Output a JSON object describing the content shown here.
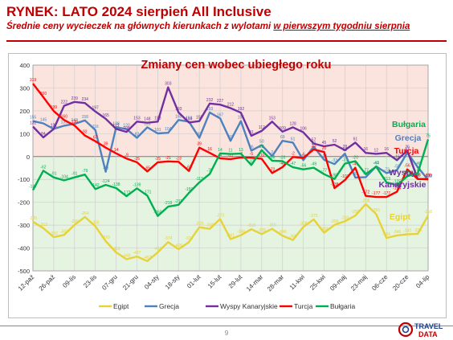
{
  "header": {
    "title": "RYNEK: LATO 2024 sierpień All Inclusive",
    "subtitle_part1": "Średnie ceny wycieczek na głównych kierunkach z wylotami ",
    "subtitle_part2": "w pierwszym tygodniu sierpnia"
  },
  "footer": {
    "page_number": "9",
    "logo_text_1": "TRAVEL",
    "logo_text_2": "DATA"
  },
  "chart_data": {
    "type": "line",
    "title": "Zmiany cen wobec ubiegłego roku",
    "ylim": [
      -500,
      400
    ],
    "yticks": [
      -500,
      -400,
      -300,
      -200,
      -100,
      0,
      100,
      200,
      300,
      400
    ],
    "x_tick_labels": [
      "12-paź",
      "26-paź",
      "09-lis",
      "23-lis",
      "07-gru",
      "21-gru",
      "04-sty",
      "18-sty",
      "01-lut",
      "15-lut",
      "29-lut",
      "14-mar",
      "28-mar",
      "11-kwi",
      "25-kwi",
      "09-maj",
      "23-maj",
      "06-cze",
      "20-cze",
      "04-lip"
    ],
    "x_count": 39,
    "grid": true,
    "legend_position": "bottom",
    "background_bands": {
      "positive": "#fbe3de",
      "negative": "#e5f3e1"
    },
    "series": [
      {
        "name": "Egipt",
        "color": "#e5d338",
        "values": [
          -285,
          -313,
          -352,
          -343,
          -299,
          -264,
          -305,
          -370,
          -419,
          -449,
          -437,
          -457,
          -419,
          -374,
          -405,
          -374,
          -309,
          -316,
          -273,
          -361,
          -344,
          -318,
          -339,
          -316,
          -346,
          -365,
          -308,
          -275,
          -333,
          -299,
          -283,
          -258,
          -208,
          -251,
          -356,
          -345,
          -340,
          -338,
          -258
        ]
      },
      {
        "name": "Grecja",
        "color": "#4f81bd",
        "values": [
          155,
          145,
          121,
          135,
          143,
          158,
          116,
          -66,
          128,
          120,
          82,
          128,
          101,
          104,
          160,
          153,
          82,
          193,
          167,
          69,
          155,
          26,
          50,
          2,
          69,
          61,
          -16,
          43,
          -14,
          -33,
          13,
          -92,
          -90,
          -43,
          -72,
          -59,
          17,
          -46,
          -102
        ]
      },
      {
        "name": "Wyspy Kanaryjskie",
        "color": "#7030a0",
        "values": [
          131,
          84,
          121,
          222,
          239,
          234,
          197,
          165,
          121,
          108,
          153,
          148,
          153,
          303,
          193,
          149,
          155,
          232,
          227,
          212,
          192,
          91,
          112,
          153,
          109,
          128,
          106,
          57,
          45,
          52,
          28,
          61,
          16,
          12,
          16,
          -16,
          26,
          -98,
          -98
        ]
      },
      {
        "name": "Turcja",
        "color": "#ff0000",
        "values": [
          319,
          260,
          199,
          160,
          136,
          92,
          67,
          39,
          14,
          -9,
          -25,
          -65,
          -25,
          -21,
          -23,
          -63,
          39,
          16,
          -8,
          -11,
          -4,
          -5,
          -10,
          -72,
          -46,
          -2,
          -6,
          31,
          20,
          -138,
          -103,
          -49,
          -172,
          -177,
          -177,
          -154,
          -56,
          -98,
          -100
        ]
      },
      {
        "name": "Bułgaria",
        "color": "#00b050",
        "values": [
          -147,
          -62,
          -91,
          -104,
          -91,
          -79,
          -142,
          -124,
          -138,
          -173,
          -139,
          -171,
          -260,
          -219,
          -211,
          -159,
          -113,
          -76,
          14,
          11,
          13,
          -37,
          28,
          -18,
          -20,
          -47,
          -56,
          -49,
          -77,
          -98,
          -31,
          -20,
          -77,
          -44,
          -113,
          -125,
          -86,
          -73,
          75
        ]
      }
    ],
    "right_labels": [
      {
        "text": "Bułgaria",
        "color": "#00b050"
      },
      {
        "text": "Grecja",
        "color": "#4f81bd"
      },
      {
        "text": "Turcja",
        "color": "#ff0000"
      },
      {
        "text": "Wyspy",
        "color": "#7030a0"
      },
      {
        "text": "Kanaryjskie",
        "color": "#7030a0"
      },
      {
        "text": "Egipt",
        "color": "#e5d338"
      }
    ]
  }
}
